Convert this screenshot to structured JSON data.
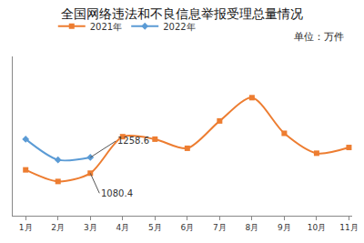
{
  "chart_data": {
    "type": "line",
    "title": "全国网络违法和不良信息举报受理总量情况",
    "unit": "单位：万件",
    "categories": [
      "1月",
      "2月",
      "3月",
      "4月",
      "5月",
      "6月",
      "7月",
      "8月",
      "9月",
      "10月",
      "11月"
    ],
    "series": [
      {
        "name": "2021年",
        "color": "#ED7D31",
        "marker": "square",
        "values": [
          1118,
          987,
          1080.4,
          1493,
          1465,
          1362,
          1671,
          1934,
          1531,
          1306,
          1371
        ]
      },
      {
        "name": "2022年",
        "color": "#5B9BD5",
        "marker": "diamond",
        "values": [
          1465,
          1231,
          1258.6,
          null,
          null,
          null,
          null,
          null,
          null,
          null,
          null
        ]
      }
    ],
    "annotations": [
      {
        "series": "2022年",
        "category": "3月",
        "text": "1258.6"
      },
      {
        "series": "2021年",
        "category": "3月",
        "text": "1080.4"
      }
    ],
    "ylim": [
      600,
      2400
    ],
    "tick_labels": "x",
    "grid": false,
    "legend": "top"
  }
}
